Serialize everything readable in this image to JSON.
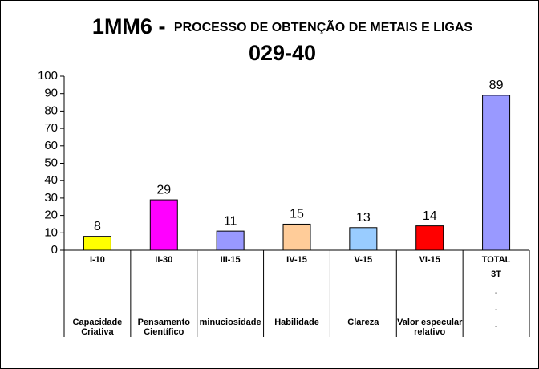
{
  "chart_data": {
    "type": "bar",
    "title": "1MM6 -",
    "subtitle": "PROCESSO DE OBTENÇÃO DE METAIS E LIGAS",
    "title_line2": "029-40",
    "categories": [
      "I-10",
      "II-30",
      "III-15",
      "IV-15",
      "V-15",
      "VI-15",
      "TOTAL"
    ],
    "descriptions": [
      [
        "Capacidade",
        "Criativa"
      ],
      [
        "Pensamento",
        "Científico"
      ],
      [
        "minuciosidade"
      ],
      [
        "Habilidade"
      ],
      [
        "Clareza"
      ],
      [
        "Valor especular",
        "relativo"
      ],
      null
    ],
    "total_notes": [
      "3T",
      ".",
      ".",
      "."
    ],
    "values": [
      8,
      29,
      11,
      15,
      13,
      14,
      89
    ],
    "colors": [
      "#ffff00",
      "#ff00ff",
      "#9999ff",
      "#ffcc99",
      "#99ccff",
      "#ff0000",
      "#9999ff"
    ],
    "ylim": [
      0,
      100
    ],
    "yticks": [
      0,
      10,
      20,
      30,
      40,
      50,
      60,
      70,
      80,
      90,
      100
    ],
    "grid": false
  }
}
